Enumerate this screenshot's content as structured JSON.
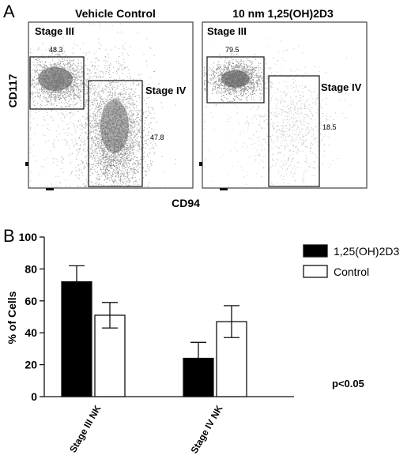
{
  "panel_a": {
    "label": "A",
    "y_axis_label": "CD117",
    "x_axis_label": "CD94",
    "plots": [
      {
        "title": "Vehicle Control",
        "gates": [
          {
            "name": "Stage III",
            "percent": "48.3"
          },
          {
            "name": "Stage IV",
            "percent": "47.8"
          }
        ]
      },
      {
        "title": "10 nm 1,25(OH)2D3",
        "gates": [
          {
            "name": "Stage III",
            "percent": "79.5"
          },
          {
            "name": "Stage IV",
            "percent": "18.5"
          }
        ]
      }
    ]
  },
  "panel_b": {
    "label": "B",
    "annotation": "p<0.05"
  },
  "chart_data": [
    {
      "type": "scatter",
      "title": "Vehicle Control",
      "xlabel": "CD94",
      "ylabel": "CD117",
      "gates": [
        {
          "name": "Stage III",
          "percent": 48.3
        },
        {
          "name": "Stage IV",
          "percent": 47.8
        }
      ]
    },
    {
      "type": "scatter",
      "title": "10 nm 1,25(OH)2D3",
      "xlabel": "CD94",
      "ylabel": "CD117",
      "gates": [
        {
          "name": "Stage III",
          "percent": 79.5
        },
        {
          "name": "Stage IV",
          "percent": 18.5
        }
      ]
    },
    {
      "type": "bar",
      "categories": [
        "Stage III NK",
        "Stage IV NK"
      ],
      "series": [
        {
          "name": "1,25(OH)2D3",
          "values": [
            72,
            24
          ],
          "error": [
            10,
            10
          ],
          "color": "#000000"
        },
        {
          "name": "Control",
          "values": [
            51,
            47
          ],
          "error": [
            8,
            10
          ],
          "color": "#ffffff"
        }
      ],
      "xlabel": "",
      "ylabel": "% of Cells",
      "ylim": [
        0,
        100
      ],
      "yticks": [
        "0",
        "20",
        "40",
        "60",
        "80",
        "100"
      ],
      "legend": "top-right",
      "annotation": "p<0.05"
    }
  ]
}
